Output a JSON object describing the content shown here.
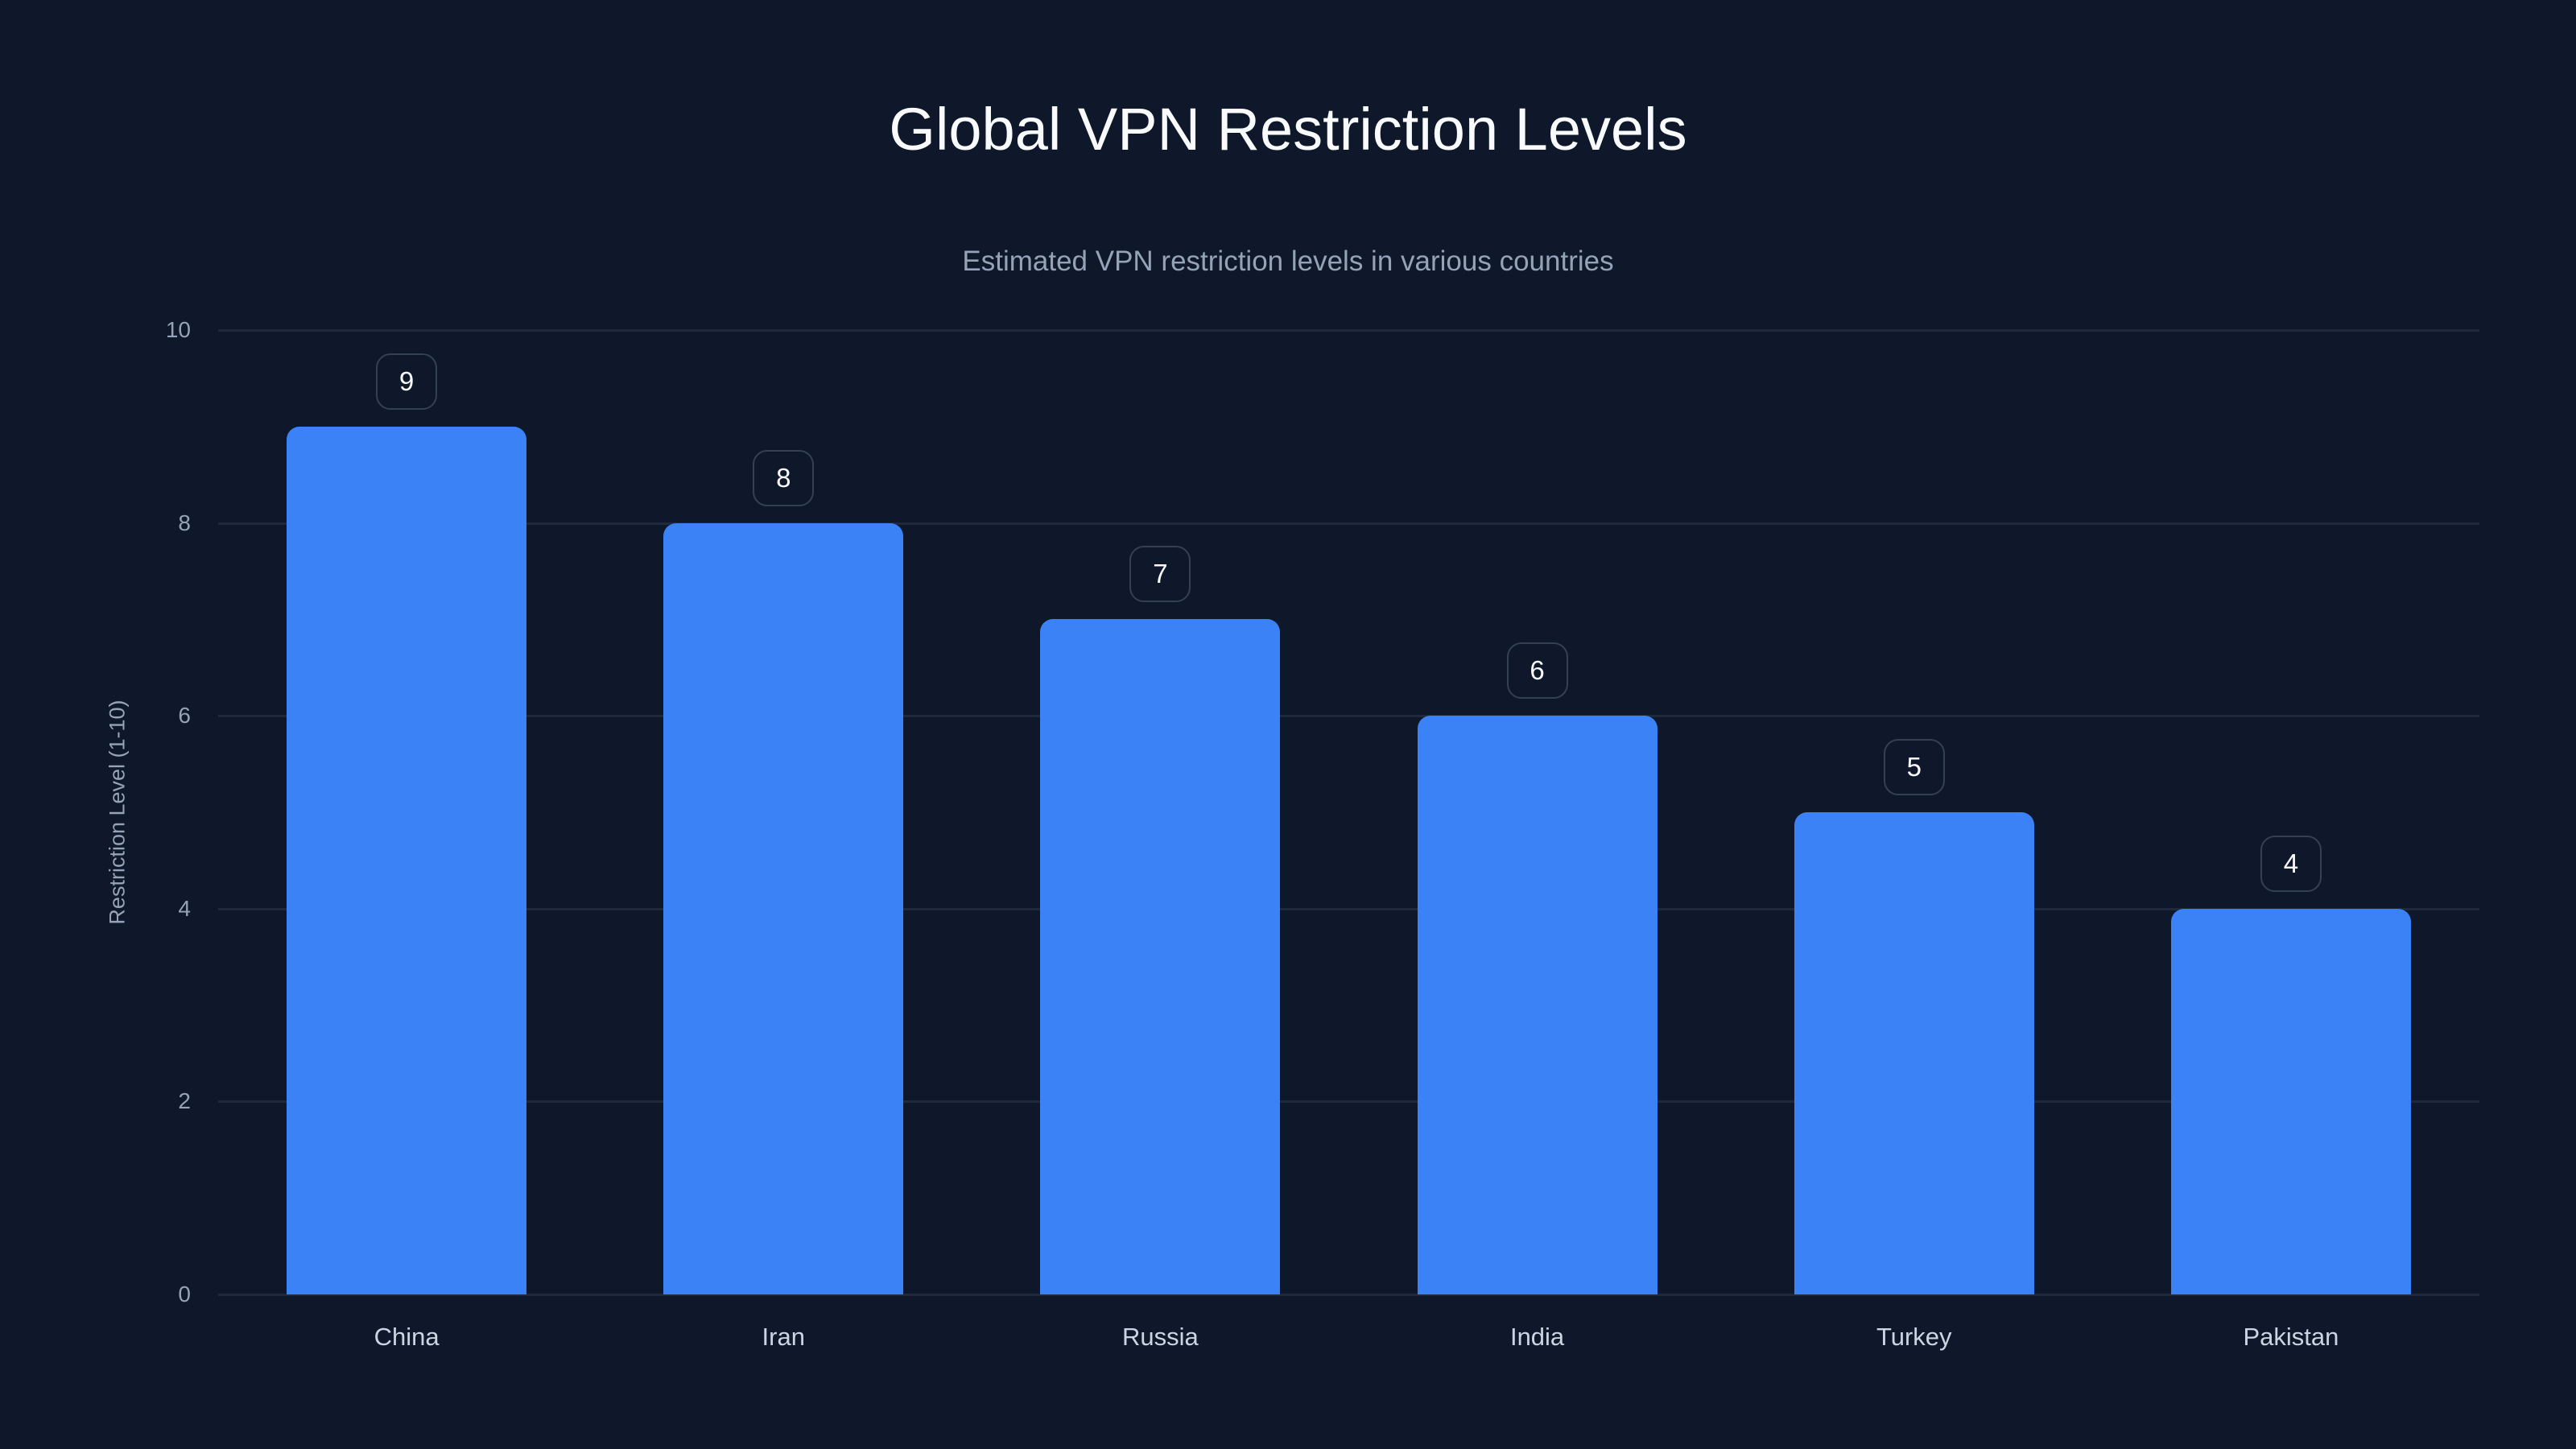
{
  "chart_data": {
    "type": "bar",
    "title": "Global VPN Restriction Levels",
    "subtitle": "Estimated VPN restriction levels in various countries",
    "xlabel": "",
    "ylabel": "Restriction Level (1-10)",
    "categories": [
      "China",
      "Iran",
      "Russia",
      "India",
      "Turkey",
      "Pakistan"
    ],
    "values": [
      9,
      8,
      7,
      6,
      5,
      4
    ],
    "ylim": [
      0,
      10
    ],
    "yticks": [
      0,
      2,
      4,
      6,
      8,
      10
    ],
    "grid": true,
    "legend": null,
    "data_labels": [
      "9",
      "8",
      "7",
      "6",
      "5",
      "4"
    ],
    "colors": {
      "background": "#0f172a",
      "bar": "#3b82f6",
      "grid": "#1e293b",
      "title": "#f8fafc",
      "subtitle": "#94a3b8",
      "tick_label": "#94a3b8",
      "category_label": "#cbd5e1",
      "badge_border": "#334155"
    }
  },
  "header": {
    "title": "Global VPN Restriction Levels",
    "subtitle": "Estimated VPN restriction levels in various countries"
  },
  "axes": {
    "ylabel": "Restriction Level (1-10)",
    "yticks": [
      "0",
      "2",
      "4",
      "6",
      "8",
      "10"
    ]
  },
  "bars": [
    {
      "label": "China",
      "value": "9"
    },
    {
      "label": "Iran",
      "value": "8"
    },
    {
      "label": "Russia",
      "value": "7"
    },
    {
      "label": "India",
      "value": "6"
    },
    {
      "label": "Turkey",
      "value": "5"
    },
    {
      "label": "Pakistan",
      "value": "4"
    }
  ]
}
